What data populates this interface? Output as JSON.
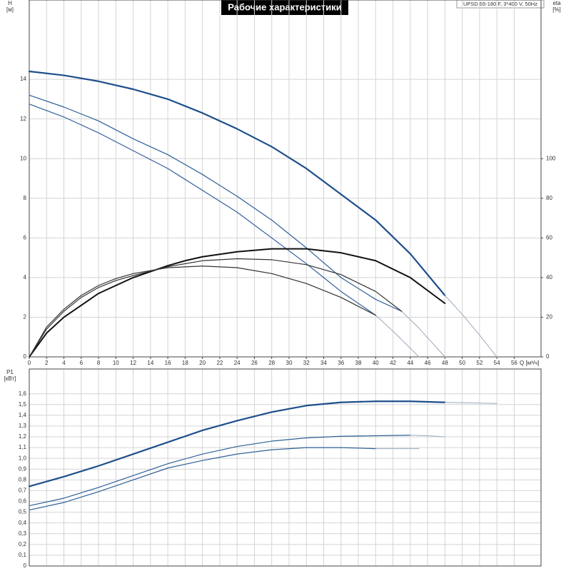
{
  "chart_data": [
    {
      "type": "line",
      "title": "Рабочие характеристики",
      "subtitle": "UPSD 65-180 F, 3*400 V, 50Hz",
      "ylabel": [
        "H",
        "[м]"
      ],
      "y2label": [
        "eta",
        "[%]"
      ],
      "xlabel": "Q [м³/ч]",
      "xlim": [
        0,
        59.1
      ],
      "ylim": [
        0,
        18
      ],
      "y2lim": [
        0,
        180
      ],
      "xticks": [
        0,
        2,
        4,
        6,
        8,
        10,
        12,
        14,
        16,
        18,
        20,
        22,
        24,
        26,
        28,
        30,
        32,
        34,
        36,
        38,
        40,
        42,
        44,
        46,
        48,
        50,
        52,
        54,
        56
      ],
      "yticks": [
        0,
        2,
        4,
        6,
        8,
        10,
        12,
        14
      ],
      "y2ticks": [
        0,
        20,
        40,
        60,
        80,
        100
      ],
      "grid": true,
      "xtick_labels": true,
      "series": [
        {
          "color": "#1f4e8c",
          "width": 2.2,
          "x": [
            0,
            4,
            8,
            12,
            16,
            20,
            24,
            28,
            32,
            36,
            40,
            44,
            48
          ],
          "values": [
            14.4,
            14.2,
            13.9,
            13.5,
            13.0,
            12.3,
            11.5,
            10.6,
            9.5,
            8.2,
            6.9,
            5.2,
            3.1
          ]
        },
        {
          "color": "#9aaabb",
          "width": 1,
          "x": [
            48,
            50,
            52,
            54
          ],
          "values": [
            3.1,
            2.15,
            1.1,
            0
          ]
        },
        {
          "color": "#2e5f98",
          "width": 1.2,
          "x": [
            0,
            4,
            8,
            12,
            16,
            20,
            24,
            28,
            32,
            36,
            40,
            43
          ],
          "values": [
            13.2,
            12.6,
            11.9,
            11.0,
            10.2,
            9.2,
            8.1,
            6.9,
            5.5,
            4.0,
            2.9,
            2.3
          ]
        },
        {
          "color": "#9aaabb",
          "width": 1,
          "x": [
            43,
            45,
            48
          ],
          "values": [
            2.3,
            1.45,
            0
          ]
        },
        {
          "color": "#2e5f98",
          "width": 1.2,
          "x": [
            0,
            4,
            8,
            12,
            16,
            20,
            24,
            28,
            32,
            36,
            40
          ],
          "values": [
            12.75,
            12.1,
            11.3,
            10.4,
            9.5,
            8.4,
            7.3,
            6.0,
            4.7,
            3.3,
            2.1
          ]
        },
        {
          "color": "#9aaabb",
          "width": 1,
          "x": [
            40,
            42,
            45
          ],
          "values": [
            2.1,
            1.3,
            0
          ]
        },
        {
          "color": "#111111",
          "width": 2,
          "axis": "y2",
          "x": [
            0,
            2,
            4,
            6,
            8,
            10,
            12,
            14,
            16,
            18,
            20,
            24,
            28,
            32,
            36,
            40,
            44,
            48
          ],
          "values": [
            0,
            12,
            20,
            26,
            32,
            36,
            40,
            43,
            46,
            48.5,
            50.5,
            53,
            54.5,
            54.5,
            52.5,
            48.5,
            40,
            27
          ]
        },
        {
          "color": "#333333",
          "width": 1.2,
          "axis": "y2",
          "x": [
            0,
            2,
            4,
            6,
            8,
            10,
            12,
            16,
            20,
            24,
            28,
            32,
            36,
            40,
            43
          ],
          "values": [
            0,
            14,
            23,
            30,
            35,
            38.5,
            41,
            45.5,
            48.5,
            49.5,
            49,
            46.5,
            41.5,
            33,
            23
          ]
        },
        {
          "color": "#333333",
          "width": 1.2,
          "axis": "y2",
          "x": [
            0,
            2,
            4,
            6,
            8,
            10,
            12,
            16,
            20,
            24,
            28,
            32,
            36,
            40
          ],
          "values": [
            0,
            15,
            24,
            31,
            36,
            39.5,
            42,
            45,
            45.8,
            45,
            42,
            37,
            30,
            21
          ]
        }
      ]
    },
    {
      "type": "line",
      "ylabel": [
        "P1",
        "[кВт]"
      ],
      "xlim": [
        0,
        59.1
      ],
      "ylim": [
        0,
        1.83
      ],
      "xticks": [
        0,
        2,
        4,
        6,
        8,
        10,
        12,
        14,
        16,
        18,
        20,
        22,
        24,
        26,
        28,
        30,
        32,
        34,
        36,
        38,
        40,
        42,
        44,
        46,
        48,
        50,
        52,
        54,
        56
      ],
      "xtick_labels": false,
      "yticks": [
        0,
        {
          "value": 0.1,
          "label": "0,1"
        },
        {
          "value": 0.2,
          "label": "0,2"
        },
        {
          "value": 0.3,
          "label": "0,3"
        },
        {
          "value": 0.4,
          "label": "0,4"
        },
        {
          "value": 0.5,
          "label": "0,5"
        },
        {
          "value": 0.6,
          "label": "0,6"
        },
        {
          "value": 0.7,
          "label": "0,7"
        },
        {
          "value": 0.8,
          "label": "0,8"
        },
        {
          "value": 0.9,
          "label": "0,9"
        },
        {
          "value": 1,
          "label": "1,0"
        },
        {
          "value": 1.1,
          "label": "1,1"
        },
        {
          "value": 1.2,
          "label": "1,2"
        },
        {
          "value": 1.3,
          "label": "1,3"
        },
        {
          "value": 1.4,
          "label": "1,4"
        },
        {
          "value": 1.5,
          "label": "1,5"
        },
        {
          "value": 1.6,
          "label": "1,6"
        }
      ],
      "grid": true,
      "series": [
        {
          "color": "#1f4e8c",
          "width": 2.2,
          "x": [
            0,
            4,
            8,
            12,
            16,
            20,
            24,
            28,
            32,
            36,
            40,
            44,
            48
          ],
          "values": [
            0.74,
            0.83,
            0.93,
            1.04,
            1.15,
            1.26,
            1.35,
            1.43,
            1.49,
            1.52,
            1.53,
            1.53,
            1.52
          ]
        },
        {
          "color": "#9aaabb",
          "width": 1,
          "x": [
            48,
            51,
            54
          ],
          "values": [
            1.52,
            1.515,
            1.51
          ]
        },
        {
          "color": "#2e5f98",
          "width": 1.2,
          "x": [
            0,
            4,
            8,
            12,
            16,
            20,
            24,
            28,
            32,
            36,
            40,
            44
          ],
          "values": [
            0.56,
            0.63,
            0.73,
            0.84,
            0.95,
            1.04,
            1.11,
            1.16,
            1.19,
            1.205,
            1.21,
            1.215
          ]
        },
        {
          "color": "#9aaabb",
          "width": 1,
          "x": [
            44,
            46,
            48
          ],
          "values": [
            1.215,
            1.21,
            1.2
          ]
        },
        {
          "color": "#2e5f98",
          "width": 1.2,
          "x": [
            0,
            4,
            8,
            12,
            16,
            20,
            24,
            28,
            32,
            36,
            40
          ],
          "values": [
            0.52,
            0.59,
            0.69,
            0.8,
            0.91,
            0.98,
            1.04,
            1.08,
            1.1,
            1.1,
            1.09
          ]
        },
        {
          "color": "#9aaabb",
          "width": 1,
          "x": [
            40,
            42,
            45
          ],
          "values": [
            1.09,
            1.09,
            1.09
          ]
        }
      ]
    }
  ]
}
